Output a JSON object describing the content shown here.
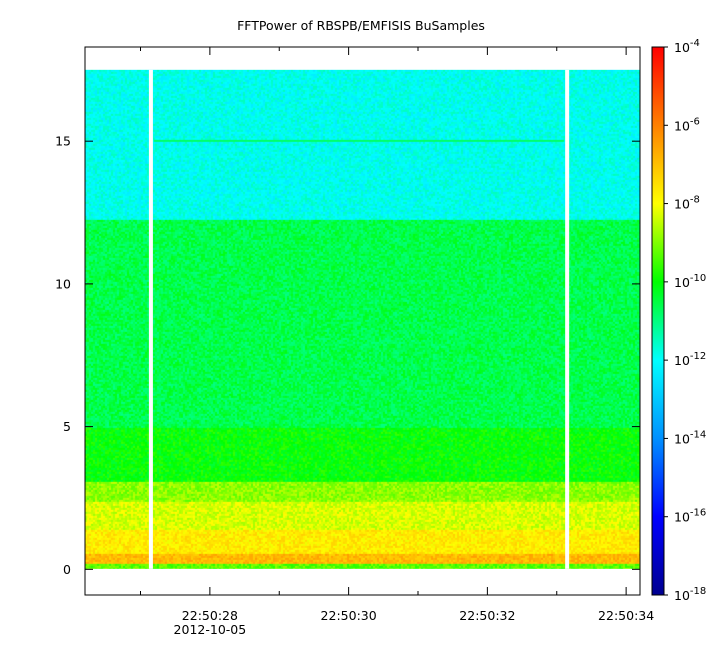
{
  "chart_data": {
    "type": "heatmap",
    "title": "FFTPower of RBSPB/EMFISIS  BuSamples",
    "xlabel": "",
    "ylabel": "",
    "x_axis": {
      "type": "time",
      "range": [
        "2012-10-05T22:50:26.2",
        "2012-10-05T22:50:34.2"
      ],
      "labeled_ticks": [
        {
          "t": "22:50:28",
          "label": "22:50:28"
        },
        {
          "t": "22:50:30",
          "label": "22:50:30"
        },
        {
          "t": "22:50:32",
          "label": "22:50:32"
        },
        {
          "t": "22:50:34",
          "label": "22:50:34"
        }
      ],
      "minor_ticks": [
        "22:50:27",
        "22:50:29",
        "22:50:31",
        "22:50:33"
      ],
      "date_label": "2012-10-05"
    },
    "y_axis": {
      "range": [
        -0.9,
        18.3
      ],
      "ticks": [
        0,
        5,
        10,
        15
      ],
      "tick_labels": [
        "0",
        "5",
        "10",
        "15"
      ]
    },
    "colorbar": {
      "scale": "log",
      "range_exponent": [
        -18,
        -4
      ],
      "ticks": [
        {
          "exp": -4,
          "base": "10",
          "sup": "-4"
        },
        {
          "exp": -6,
          "base": "10",
          "sup": "-6"
        },
        {
          "exp": -8,
          "base": "10",
          "sup": "-8"
        },
        {
          "exp": -10,
          "base": "10",
          "sup": "-10"
        },
        {
          "exp": -12,
          "base": "10",
          "sup": "-12"
        },
        {
          "exp": -14,
          "base": "10",
          "sup": "-14"
        },
        {
          "exp": -16,
          "base": "10",
          "sup": "-16"
        },
        {
          "exp": -18,
          "base": "10",
          "sup": "-18"
        }
      ],
      "colormap": [
        "#000090",
        "#0000ff",
        "#0090ff",
        "#00ffff",
        "#00ff00",
        "#ffff00",
        "#ff8000",
        "#ff0000"
      ]
    },
    "data_extent": {
      "time": [
        "22:50:26.2",
        "22:50:34.2"
      ],
      "freq": [
        0,
        17.5
      ]
    },
    "gaps": [
      {
        "time": "22:50:27.15"
      },
      {
        "time": "22:50:33.15"
      }
    ],
    "frequency_bands": [
      {
        "freq": [
          0,
          0.2
        ],
        "log10_power": -9.3
      },
      {
        "freq": [
          0.2,
          0.55
        ],
        "log10_power": -6.9
      },
      {
        "freq": [
          0.55,
          1.4
        ],
        "log10_power": -7.7
      },
      {
        "freq": [
          1.4,
          2.4
        ],
        "log10_power": -8.3
      },
      {
        "freq": [
          2.4,
          3.1
        ],
        "log10_power": -8.9
      },
      {
        "freq": [
          3.1,
          5.0
        ],
        "log10_power": -10.0
      },
      {
        "freq": [
          5.0,
          12.3
        ],
        "log10_power": -10.6
      },
      {
        "freq": [
          12.3,
          17.5
        ],
        "log10_power": -11.9
      }
    ],
    "line_features": [
      {
        "freq": 15.0,
        "time": [
          "22:50:27.2",
          "22:50:33.1"
        ],
        "log10_power": -10.8
      }
    ]
  }
}
